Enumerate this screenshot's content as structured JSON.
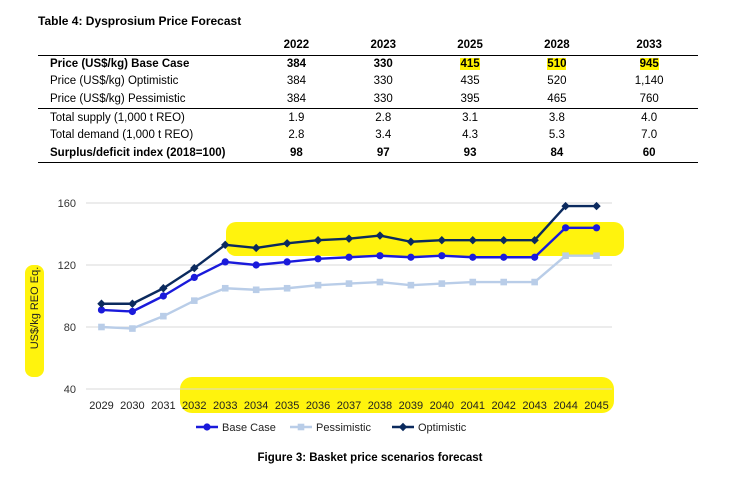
{
  "table": {
    "title": "Table 4: Dysprosium Price Forecast",
    "years": [
      "2022",
      "2023",
      "2025",
      "2028",
      "2033"
    ],
    "rows": [
      {
        "label": "Price (US$/kg) Base Case",
        "values": [
          "384",
          "330",
          "415",
          "510",
          "945"
        ],
        "bold": true,
        "highlight": [
          false,
          false,
          true,
          true,
          true
        ]
      },
      {
        "label": "Price (US$/kg) Optimistic",
        "values": [
          "384",
          "330",
          "435",
          "520",
          "1,140"
        ],
        "bold": false
      },
      {
        "label": "Price (US$/kg) Pessimistic",
        "values": [
          "384",
          "330",
          "395",
          "465",
          "760"
        ],
        "bold": false
      },
      {
        "label": "Total supply (1,000 t REO)",
        "values": [
          "1.9",
          "2.8",
          "3.1",
          "3.8",
          "4.0"
        ],
        "bold": false
      },
      {
        "label": "Total demand (1,000 t REO)",
        "values": [
          "2.8",
          "3.4",
          "4.3",
          "5.3",
          "7.0"
        ],
        "bold": false
      },
      {
        "label": "Surplus/deficit index (2018=100)",
        "values": [
          "98",
          "97",
          "93",
          "84",
          "60"
        ],
        "bold": true
      }
    ]
  },
  "chart_data": {
    "type": "line",
    "title": "",
    "caption": "Figure 3: Basket price scenarios forecast",
    "ylabel": "US$/kg REO Eq.",
    "xlabel": "",
    "x": [
      "2029",
      "2030",
      "2031",
      "2032",
      "2033",
      "2034",
      "2035",
      "2036",
      "2037",
      "2038",
      "2039",
      "2040",
      "2041",
      "2042",
      "2043",
      "2044",
      "2045"
    ],
    "ylim": [
      40,
      160
    ],
    "yticks": [
      "40",
      "80",
      "120",
      "160"
    ],
    "grid": "horizontal",
    "legend_position": "bottom",
    "series": [
      {
        "name": "Base Case",
        "color": "#1a1adb",
        "marker": "circle",
        "values": [
          91,
          90,
          100,
          112,
          122,
          120,
          122,
          124,
          125,
          126,
          125,
          126,
          125,
          125,
          125,
          144,
          144
        ]
      },
      {
        "name": "Pessimistic",
        "color": "#b9cde8",
        "marker": "square",
        "values": [
          80,
          79,
          87,
          97,
          105,
          104,
          105,
          107,
          108,
          109,
          107,
          108,
          109,
          109,
          109,
          126,
          126
        ]
      },
      {
        "name": "Optimistic",
        "color": "#0b2a5e",
        "marker": "diamond",
        "values": [
          95,
          95,
          105,
          118,
          133,
          131,
          134,
          136,
          137,
          139,
          135,
          136,
          136,
          136,
          136,
          158,
          158
        ]
      }
    ],
    "highlight_color": "#fff200"
  }
}
